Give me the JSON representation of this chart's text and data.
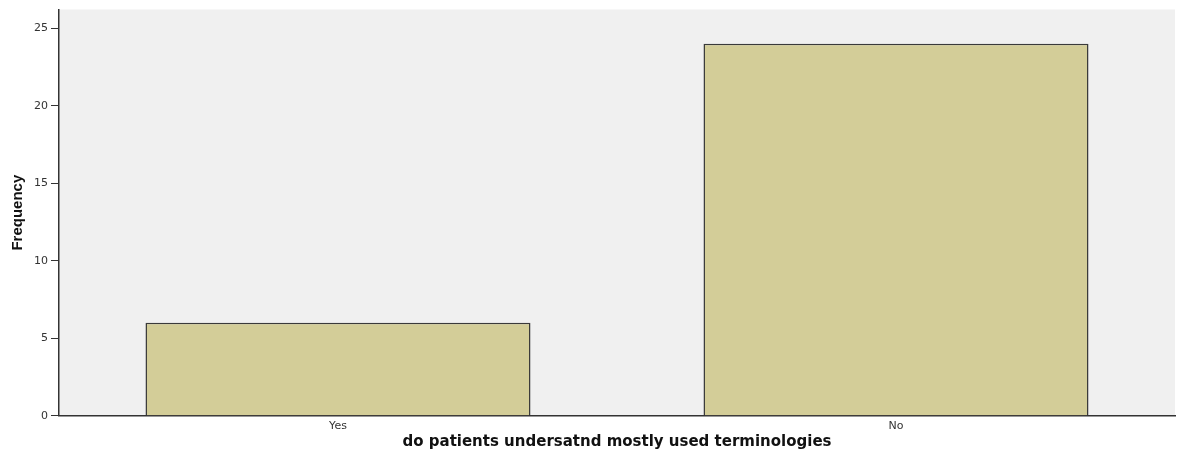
{
  "chart_data": {
    "type": "bar",
    "xlabel": "do patients undersatnd mostly used terminologies",
    "ylabel": "Frequency",
    "categories": [
      "Yes",
      "No"
    ],
    "values": [
      6,
      24
    ],
    "color": "#d3cd98",
    "ylim": [
      0,
      26.2
    ],
    "yticks": [
      0,
      5,
      10,
      15,
      20,
      25
    ],
    "grid": false,
    "legend": false
  }
}
